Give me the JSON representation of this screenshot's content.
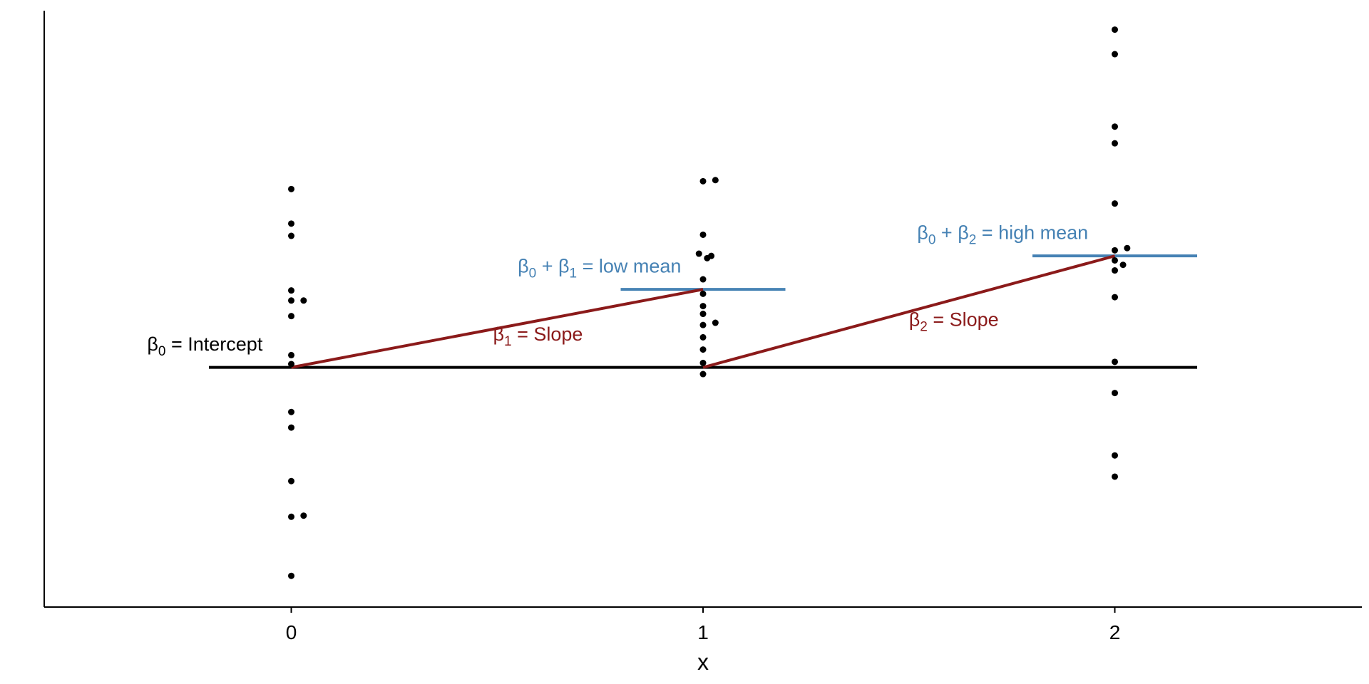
{
  "chart_data": {
    "type": "scatter",
    "title": "",
    "xlabel": "x",
    "ylabel": "",
    "xlim": [
      -0.6,
      2.6
    ],
    "ylim": [
      -2.15,
      3.2
    ],
    "x_ticks": [
      "0",
      "1",
      "2"
    ],
    "y_ticks_shown": false,
    "grid": false,
    "colors": {
      "points": "#000000",
      "baseline": "#000000",
      "slope": "#8B1A1A",
      "mean": "#4682B4"
    },
    "points": [
      {
        "x": 0,
        "y": 1.6
      },
      {
        "x": 0,
        "y": 1.29
      },
      {
        "x": 0,
        "y": 1.18
      },
      {
        "x": 0,
        "y": 0.69
      },
      {
        "x": 0,
        "y": 0.6
      },
      {
        "x": 0.03,
        "y": 0.6
      },
      {
        "x": 0,
        "y": 0.46
      },
      {
        "x": 0,
        "y": 0.11
      },
      {
        "x": 0,
        "y": 0.03
      },
      {
        "x": 0,
        "y": -0.4
      },
      {
        "x": 0,
        "y": -0.54
      },
      {
        "x": 0,
        "y": -1.02
      },
      {
        "x": 0,
        "y": -1.34
      },
      {
        "x": 0.03,
        "y": -1.33
      },
      {
        "x": 0,
        "y": -1.87
      },
      {
        "x": 1,
        "y": 1.67
      },
      {
        "x": 1.03,
        "y": 1.68
      },
      {
        "x": 1,
        "y": 1.19
      },
      {
        "x": 0.99,
        "y": 1.02
      },
      {
        "x": 1.01,
        "y": 0.98
      },
      {
        "x": 1.02,
        "y": 1.0
      },
      {
        "x": 1,
        "y": 0.79
      },
      {
        "x": 1,
        "y": 0.66
      },
      {
        "x": 1,
        "y": 0.55
      },
      {
        "x": 1,
        "y": 0.48
      },
      {
        "x": 1.03,
        "y": 0.4
      },
      {
        "x": 1,
        "y": 0.38
      },
      {
        "x": 1,
        "y": 0.27
      },
      {
        "x": 1,
        "y": 0.16
      },
      {
        "x": 1,
        "y": 0.04
      },
      {
        "x": 1,
        "y": -0.06
      },
      {
        "x": 2,
        "y": 3.03
      },
      {
        "x": 2,
        "y": 2.81
      },
      {
        "x": 2,
        "y": 2.16
      },
      {
        "x": 2,
        "y": 2.01
      },
      {
        "x": 2,
        "y": 1.47
      },
      {
        "x": 2,
        "y": 1.05
      },
      {
        "x": 2.03,
        "y": 1.07
      },
      {
        "x": 2,
        "y": 0.96
      },
      {
        "x": 2.02,
        "y": 0.92
      },
      {
        "x": 2,
        "y": 0.87
      },
      {
        "x": 2,
        "y": 0.63
      },
      {
        "x": 2,
        "y": 0.05
      },
      {
        "x": 2,
        "y": -0.23
      },
      {
        "x": 2,
        "y": -0.79
      },
      {
        "x": 2,
        "y": -0.98
      }
    ],
    "baseline": {
      "y": 0,
      "x_from": -0.2,
      "x_to": 2.2
    },
    "slope_segments": [
      {
        "x": [
          0,
          1
        ],
        "y": [
          0,
          0.7
        ]
      },
      {
        "x": [
          1,
          2
        ],
        "y": [
          0,
          1.0
        ]
      }
    ],
    "mean_segments": [
      {
        "x": [
          0.8,
          1.2
        ],
        "y": 0.7
      },
      {
        "x": [
          1.8,
          2.2
        ],
        "y": 1.0
      }
    ],
    "annotations": {
      "intercept": {
        "greek": "β",
        "sub": "0",
        "text": " = Intercept",
        "x": -0.35,
        "y": 0.15
      },
      "slope1": {
        "greek": "β",
        "sub": "1",
        "text": " = Slope",
        "x": 0.49,
        "y": 0.24
      },
      "low_mean": {
        "greek1": "β",
        "sub1": "0",
        "plus": " + ",
        "greek2": "β",
        "sub2": "1",
        "text": " = low mean",
        "x": 0.55,
        "y": 0.85
      },
      "slope2": {
        "greek": "β",
        "sub": "2",
        "text": " = Slope",
        "x": 1.5,
        "y": 0.37
      },
      "high_mean": {
        "greek1": "β",
        "sub1": "0",
        "plus": " + ",
        "greek2": "β",
        "sub2": "2",
        "text": " = high mean",
        "x": 1.52,
        "y": 1.15
      }
    }
  }
}
